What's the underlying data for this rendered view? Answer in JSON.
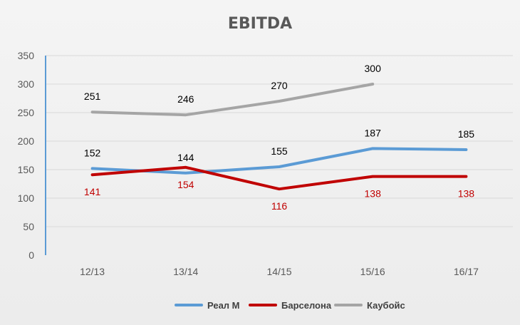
{
  "chart_data": {
    "type": "line",
    "title": "EBITDA",
    "xlabel": "",
    "ylabel": "",
    "categories": [
      "12/13",
      "13/14",
      "14/15",
      "15/16",
      "16/17"
    ],
    "ylim": [
      0,
      350
    ],
    "yticks": [
      0,
      50,
      100,
      150,
      200,
      250,
      300,
      350
    ],
    "grid": true,
    "legend_position": "bottom",
    "series": [
      {
        "name": "Реал М",
        "color": "#5b9bd5",
        "label_color": "#000000",
        "label_side": "above",
        "values": [
          152,
          144,
          155,
          187,
          185
        ]
      },
      {
        "name": "Барселона",
        "color": "#c00000",
        "label_color": "#c00000",
        "label_side": "below",
        "values": [
          141,
          154,
          116,
          138,
          138
        ]
      },
      {
        "name": "Каубойс",
        "color": "#a5a5a5",
        "label_color": "#000000",
        "label_side": "above",
        "values": [
          251,
          246,
          270,
          300,
          null
        ]
      }
    ]
  }
}
